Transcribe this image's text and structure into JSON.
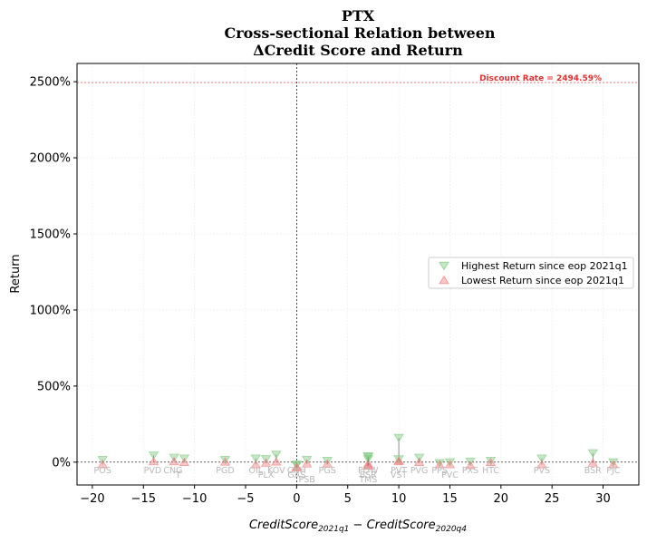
{
  "chart_data": {
    "type": "scatter",
    "title_lines": [
      "PTX",
      "Cross-sectional Relation between",
      "ΔCredit Score and Return"
    ],
    "xlabel": {
      "main": "CreditScore",
      "sub1": "2021q1",
      "minus": " − ",
      "main2": "CreditScore",
      "sub2": "2020q4"
    },
    "ylabel": "Return",
    "xlim": [
      -21.5,
      33.5
    ],
    "ylim": [
      -150,
      2620
    ],
    "xticks": [
      -20,
      -15,
      -10,
      -5,
      0,
      5,
      10,
      15,
      20,
      25,
      30
    ],
    "xtick_labels": [
      "−20",
      "−15",
      "−10",
      "−5",
      "0",
      "5",
      "10",
      "15",
      "20",
      "25",
      "30"
    ],
    "yticks": [
      0,
      500,
      1000,
      1500,
      2000,
      2500
    ],
    "ytick_labels": [
      "0%",
      "500%",
      "1000%",
      "1500%",
      "2000%",
      "2500%"
    ],
    "grid": true,
    "discount_rate": {
      "value": 2494.59,
      "label": "Discount Rate = 2494.59%",
      "color": "#e03030"
    },
    "legend": {
      "placement": "center-right",
      "entries": [
        {
          "label": "Highest Return since eop 2021q1",
          "marker": "triangle-down",
          "color": "#7fc97f"
        },
        {
          "label": "Lowest Return since eop 2021q1",
          "marker": "triangle-up",
          "color": "#f08080"
        }
      ]
    },
    "series": [
      {
        "name": "Highest Return since eop 2021q1",
        "color": "#7fc97f"
      },
      {
        "name": "Lowest Return since eop 2021q1",
        "color": "#f08080"
      }
    ],
    "points": [
      {
        "ticker": "POS",
        "x": -19,
        "high": 15,
        "low": -15
      },
      {
        "ticker": "PVD",
        "x": -14,
        "high": 45,
        "low": 5
      },
      {
        "ticker": "CNG",
        "x": -12,
        "high": 30,
        "low": 5
      },
      {
        "ticker": "T",
        "x": -11,
        "high": 25,
        "low": 0
      },
      {
        "ticker": "PGD",
        "x": -7,
        "high": 15,
        "low": 2
      },
      {
        "ticker": "OIL",
        "x": -4,
        "high": 25,
        "low": -15
      },
      {
        "ticker": "PLX",
        "x": -3,
        "high": 20,
        "low": -5
      },
      {
        "ticker": "KOV",
        "x": -2,
        "high": 50,
        "low": 3
      },
      {
        "ticker": "CNH",
        "x": 0,
        "high": -15,
        "low": -35
      },
      {
        "ticker": "GAS",
        "x": 0,
        "high": -20,
        "low": -30
      },
      {
        "ticker": "PSB",
        "x": 1,
        "high": 15,
        "low": -10
      },
      {
        "ticker": "PGS",
        "x": 3,
        "high": 10,
        "low": -10
      },
      {
        "ticker": "POW",
        "x": 7,
        "high": 40,
        "low": -20
      },
      {
        "ticker": "BSR",
        "x": 7,
        "high": 35,
        "low": -10
      },
      {
        "ticker": "TMS",
        "x": 7,
        "high": 20,
        "low": -25
      },
      {
        "ticker": "PVT",
        "x": 10,
        "high": 160,
        "low": 10
      },
      {
        "ticker": "VST",
        "x": 10,
        "high": 20,
        "low": 5
      },
      {
        "ticker": "PVG",
        "x": 12,
        "high": 30,
        "low": 0
      },
      {
        "ticker": "PPS",
        "x": 14,
        "high": -5,
        "low": -15
      },
      {
        "ticker": "PVC",
        "x": 15,
        "high": 0,
        "low": -15
      },
      {
        "ticker": "PXS",
        "x": 17,
        "high": 5,
        "low": -20
      },
      {
        "ticker": "HTC",
        "x": 19,
        "high": 10,
        "low": 0
      },
      {
        "ticker": "PVS",
        "x": 24,
        "high": 25,
        "low": -15
      },
      {
        "ticker": "BSR",
        "x": 29,
        "high": 60,
        "low": -5
      },
      {
        "ticker": "PJC",
        "x": 31,
        "high": 0,
        "low": -15
      }
    ],
    "point_labels": [
      {
        "text": "POS",
        "x": -19
      },
      {
        "text": "PVD",
        "x": -14.1
      },
      {
        "text": "CNG",
        "x": -12.1
      },
      {
        "text": "T",
        "x": -11.6
      },
      {
        "text": "PGD",
        "x": -7
      },
      {
        "text": "OIL",
        "x": -4
      },
      {
        "text": "PLX",
        "x": -3
      },
      {
        "text": "KOV",
        "x": -2
      },
      {
        "text": "CNH",
        "x": 0
      },
      {
        "text": "GAS",
        "x": 0
      },
      {
        "text": "PSB",
        "x": 1
      },
      {
        "text": "PGS",
        "x": 3
      },
      {
        "text": "POW",
        "x": 7
      },
      {
        "text": "BSR",
        "x": 7
      },
      {
        "text": "TMS",
        "x": 7
      },
      {
        "text": "PVT",
        "x": 10
      },
      {
        "text": "VST",
        "x": 10
      },
      {
        "text": "PVG",
        "x": 12
      },
      {
        "text": "PPS",
        "x": 14
      },
      {
        "text": "PVC",
        "x": 15
      },
      {
        "text": "PXS",
        "x": 17
      },
      {
        "text": "HTC",
        "x": 19
      },
      {
        "text": "PVS",
        "x": 24
      },
      {
        "text": "BSR",
        "x": 29
      },
      {
        "text": "PJC",
        "x": 31
      }
    ]
  }
}
